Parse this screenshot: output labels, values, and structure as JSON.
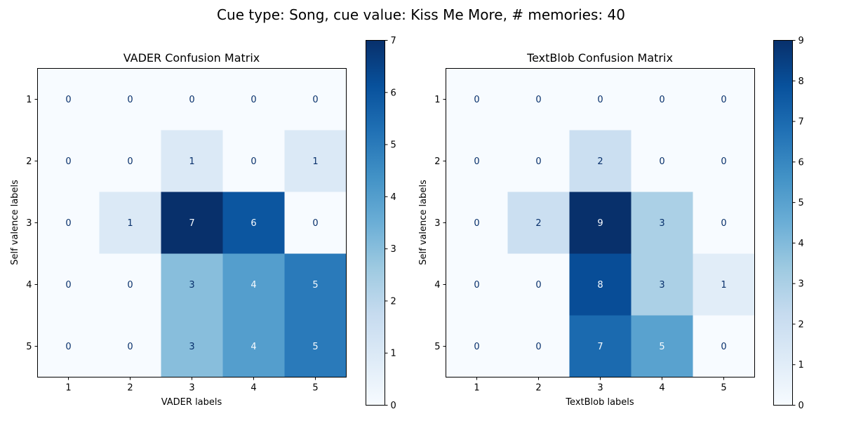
{
  "figure": {
    "suptitle": "Cue type: Song, cue value: Kiss Me More, # memories: 40"
  },
  "chart_data": [
    {
      "type": "heatmap",
      "title": "VADER Confusion Matrix",
      "xlabel": "VADER labels",
      "ylabel": "Self valence labels",
      "x_categories": [
        "1",
        "2",
        "3",
        "4",
        "5"
      ],
      "y_categories": [
        "1",
        "2",
        "3",
        "4",
        "5"
      ],
      "matrix": [
        [
          0,
          0,
          0,
          0,
          0
        ],
        [
          0,
          0,
          1,
          0,
          1
        ],
        [
          0,
          1,
          7,
          6,
          0
        ],
        [
          0,
          0,
          3,
          4,
          5
        ],
        [
          0,
          0,
          3,
          4,
          5
        ]
      ],
      "colorbar": {
        "min": 0,
        "max": 7,
        "ticks": [
          "0",
          "1",
          "2",
          "3",
          "4",
          "5",
          "6",
          "7"
        ]
      },
      "colormap": "Blues"
    },
    {
      "type": "heatmap",
      "title": "TextBlob Confusion Matrix",
      "xlabel": "TextBlob labels",
      "ylabel": "Self valence labels",
      "x_categories": [
        "1",
        "2",
        "3",
        "4",
        "5"
      ],
      "y_categories": [
        "1",
        "2",
        "3",
        "4",
        "5"
      ],
      "matrix": [
        [
          0,
          0,
          0,
          0,
          0
        ],
        [
          0,
          0,
          2,
          0,
          0
        ],
        [
          0,
          2,
          9,
          3,
          0
        ],
        [
          0,
          0,
          8,
          3,
          1
        ],
        [
          0,
          0,
          7,
          5,
          0
        ]
      ],
      "colorbar": {
        "min": 0,
        "max": 9,
        "ticks": [
          "0",
          "1",
          "2",
          "3",
          "4",
          "5",
          "6",
          "7",
          "8",
          "9"
        ]
      },
      "colormap": "Blues"
    }
  ]
}
